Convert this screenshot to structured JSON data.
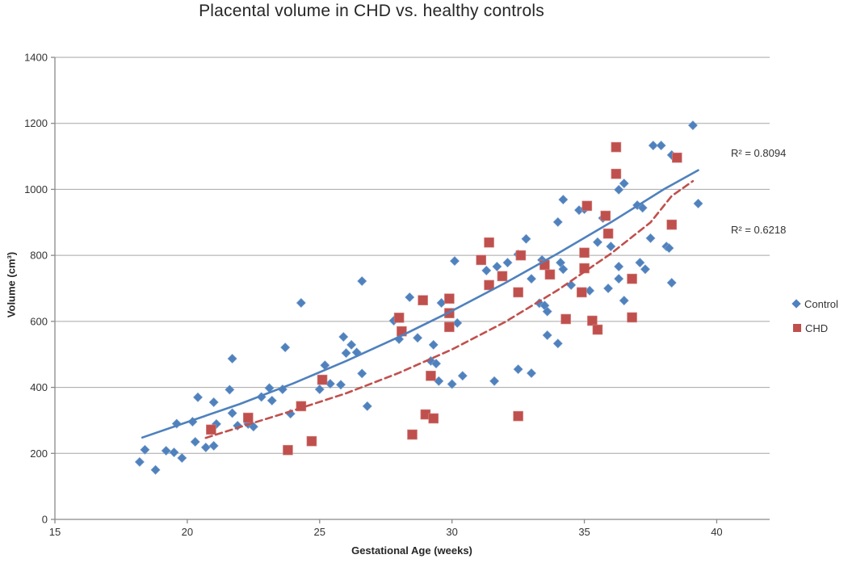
{
  "title": "Placental volume in CHD vs. healthy controls",
  "labels": {
    "r2_control": "R² = 0.8094",
    "r2_chd": "R² = 0.6218"
  },
  "colors": {
    "control": "#4F81BD",
    "chd": "#C0504D",
    "gridline": "#A6A6A6",
    "axis": "#898989",
    "tick_text": "#333333"
  },
  "chart_data": {
    "type": "scatter",
    "title": "Placental volume in CHD vs. healthy controls",
    "xlabel": "Gestational Age (weeks)",
    "ylabel": "Volume (cm³)",
    "xlim": [
      15,
      42
    ],
    "ylim": [
      0,
      1400
    ],
    "xticks": [
      15,
      20,
      25,
      30,
      35,
      40
    ],
    "yticks": [
      0,
      200,
      400,
      600,
      800,
      1000,
      1200,
      1400
    ],
    "grid": true,
    "legend_position": "right",
    "series": [
      {
        "name": "Control",
        "marker": "diamond",
        "color": "#4F81BD",
        "r_squared": 0.8094,
        "points": [
          [
            18.2,
            174
          ],
          [
            18.4,
            211
          ],
          [
            18.8,
            150
          ],
          [
            19.2,
            208
          ],
          [
            19.5,
            203
          ],
          [
            19.6,
            290
          ],
          [
            19.8,
            186
          ],
          [
            20.2,
            296
          ],
          [
            20.3,
            235
          ],
          [
            20.4,
            370
          ],
          [
            20.7,
            218
          ],
          [
            21.0,
            223
          ],
          [
            21.0,
            355
          ],
          [
            21.1,
            289
          ],
          [
            21.6,
            393
          ],
          [
            21.7,
            487
          ],
          [
            21.7,
            322
          ],
          [
            21.9,
            284
          ],
          [
            22.3,
            289
          ],
          [
            22.5,
            281
          ],
          [
            22.8,
            371
          ],
          [
            23.1,
            398
          ],
          [
            23.2,
            360
          ],
          [
            23.6,
            394
          ],
          [
            23.7,
            521
          ],
          [
            23.9,
            320
          ],
          [
            24.3,
            656
          ],
          [
            25.0,
            394
          ],
          [
            25.2,
            467
          ],
          [
            25.4,
            411
          ],
          [
            25.8,
            408
          ],
          [
            25.9,
            553
          ],
          [
            26.0,
            504
          ],
          [
            26.2,
            529
          ],
          [
            26.4,
            506
          ],
          [
            26.6,
            722
          ],
          [
            26.6,
            442
          ],
          [
            26.8,
            343
          ],
          [
            27.8,
            602
          ],
          [
            28.0,
            546
          ],
          [
            28.4,
            673
          ],
          [
            28.7,
            550
          ],
          [
            29.2,
            480
          ],
          [
            29.3,
            529
          ],
          [
            29.4,
            472
          ],
          [
            29.5,
            419
          ],
          [
            29.6,
            656
          ],
          [
            30.0,
            410
          ],
          [
            30.1,
            783
          ],
          [
            30.2,
            595
          ],
          [
            30.4,
            435
          ],
          [
            31.3,
            754
          ],
          [
            31.6,
            419
          ],
          [
            31.7,
            766
          ],
          [
            32.1,
            778
          ],
          [
            32.5,
            803
          ],
          [
            32.5,
            455
          ],
          [
            32.8,
            850
          ],
          [
            33.0,
            729
          ],
          [
            33.0,
            443
          ],
          [
            33.3,
            655
          ],
          [
            33.5,
            648
          ],
          [
            33.6,
            630
          ],
          [
            33.4,
            786
          ],
          [
            33.6,
            558
          ],
          [
            34.0,
            533
          ],
          [
            34.0,
            901
          ],
          [
            34.1,
            778
          ],
          [
            34.2,
            758
          ],
          [
            34.2,
            969
          ],
          [
            34.5,
            710
          ],
          [
            34.8,
            937
          ],
          [
            35.0,
            940
          ],
          [
            35.2,
            693
          ],
          [
            35.5,
            840
          ],
          [
            35.7,
            913
          ],
          [
            36.0,
            827
          ],
          [
            36.3,
            766
          ],
          [
            36.3,
            729
          ],
          [
            35.9,
            700
          ],
          [
            36.5,
            663
          ],
          [
            36.5,
            1018
          ],
          [
            36.3,
            999
          ],
          [
            37.0,
            952
          ],
          [
            37.2,
            944
          ],
          [
            37.1,
            778
          ],
          [
            37.3,
            758
          ],
          [
            37.5,
            852
          ],
          [
            37.6,
            1133
          ],
          [
            37.9,
            1133
          ],
          [
            38.1,
            827
          ],
          [
            38.2,
            822
          ],
          [
            38.3,
            1104
          ],
          [
            38.3,
            717
          ],
          [
            39.1,
            1194
          ],
          [
            39.3,
            957
          ]
        ]
      },
      {
        "name": "CHD",
        "marker": "square",
        "color": "#C0504D",
        "r_squared": 0.6218,
        "points": [
          [
            20.9,
            272
          ],
          [
            22.3,
            308
          ],
          [
            23.8,
            210
          ],
          [
            24.3,
            343
          ],
          [
            24.7,
            237
          ],
          [
            25.1,
            423
          ],
          [
            28.0,
            611
          ],
          [
            28.1,
            570
          ],
          [
            28.5,
            257
          ],
          [
            28.9,
            664
          ],
          [
            29.0,
            318
          ],
          [
            29.2,
            435
          ],
          [
            29.3,
            306
          ],
          [
            29.9,
            669
          ],
          [
            29.9,
            625
          ],
          [
            29.9,
            583
          ],
          [
            31.1,
            786
          ],
          [
            31.4,
            839
          ],
          [
            31.4,
            710
          ],
          [
            31.9,
            737
          ],
          [
            32.5,
            688
          ],
          [
            32.5,
            313
          ],
          [
            32.6,
            800
          ],
          [
            33.5,
            771
          ],
          [
            33.7,
            742
          ],
          [
            34.3,
            607
          ],
          [
            34.9,
            688
          ],
          [
            35.0,
            808
          ],
          [
            35.0,
            761
          ],
          [
            35.1,
            950
          ],
          [
            35.3,
            602
          ],
          [
            35.5,
            575
          ],
          [
            35.8,
            920
          ],
          [
            35.9,
            866
          ],
          [
            36.2,
            1128
          ],
          [
            36.2,
            1047
          ],
          [
            36.8,
            729
          ],
          [
            36.8,
            612
          ],
          [
            38.3,
            893
          ],
          [
            38.5,
            1096
          ]
        ]
      }
    ],
    "trendlines": [
      {
        "series": "Control",
        "style": "solid",
        "color": "#4F81BD",
        "r_squared": 0.8094,
        "points": [
          [
            18.3,
            248
          ],
          [
            20,
            295
          ],
          [
            22,
            350
          ],
          [
            24,
            412
          ],
          [
            26,
            480
          ],
          [
            28,
            553
          ],
          [
            30,
            632
          ],
          [
            32,
            716
          ],
          [
            34,
            806
          ],
          [
            36,
            900
          ],
          [
            38,
            1000
          ],
          [
            39.3,
            1058
          ]
        ]
      },
      {
        "series": "CHD",
        "style": "dashed",
        "color": "#C0504D",
        "r_squared": 0.6218,
        "points": [
          [
            20.7,
            247
          ],
          [
            22,
            280
          ],
          [
            24,
            330
          ],
          [
            26,
            382
          ],
          [
            28,
            444
          ],
          [
            30,
            515
          ],
          [
            32,
            598
          ],
          [
            34,
            695
          ],
          [
            36,
            805
          ],
          [
            37.5,
            900
          ],
          [
            38.3,
            980
          ],
          [
            39.1,
            1025
          ]
        ]
      }
    ]
  }
}
